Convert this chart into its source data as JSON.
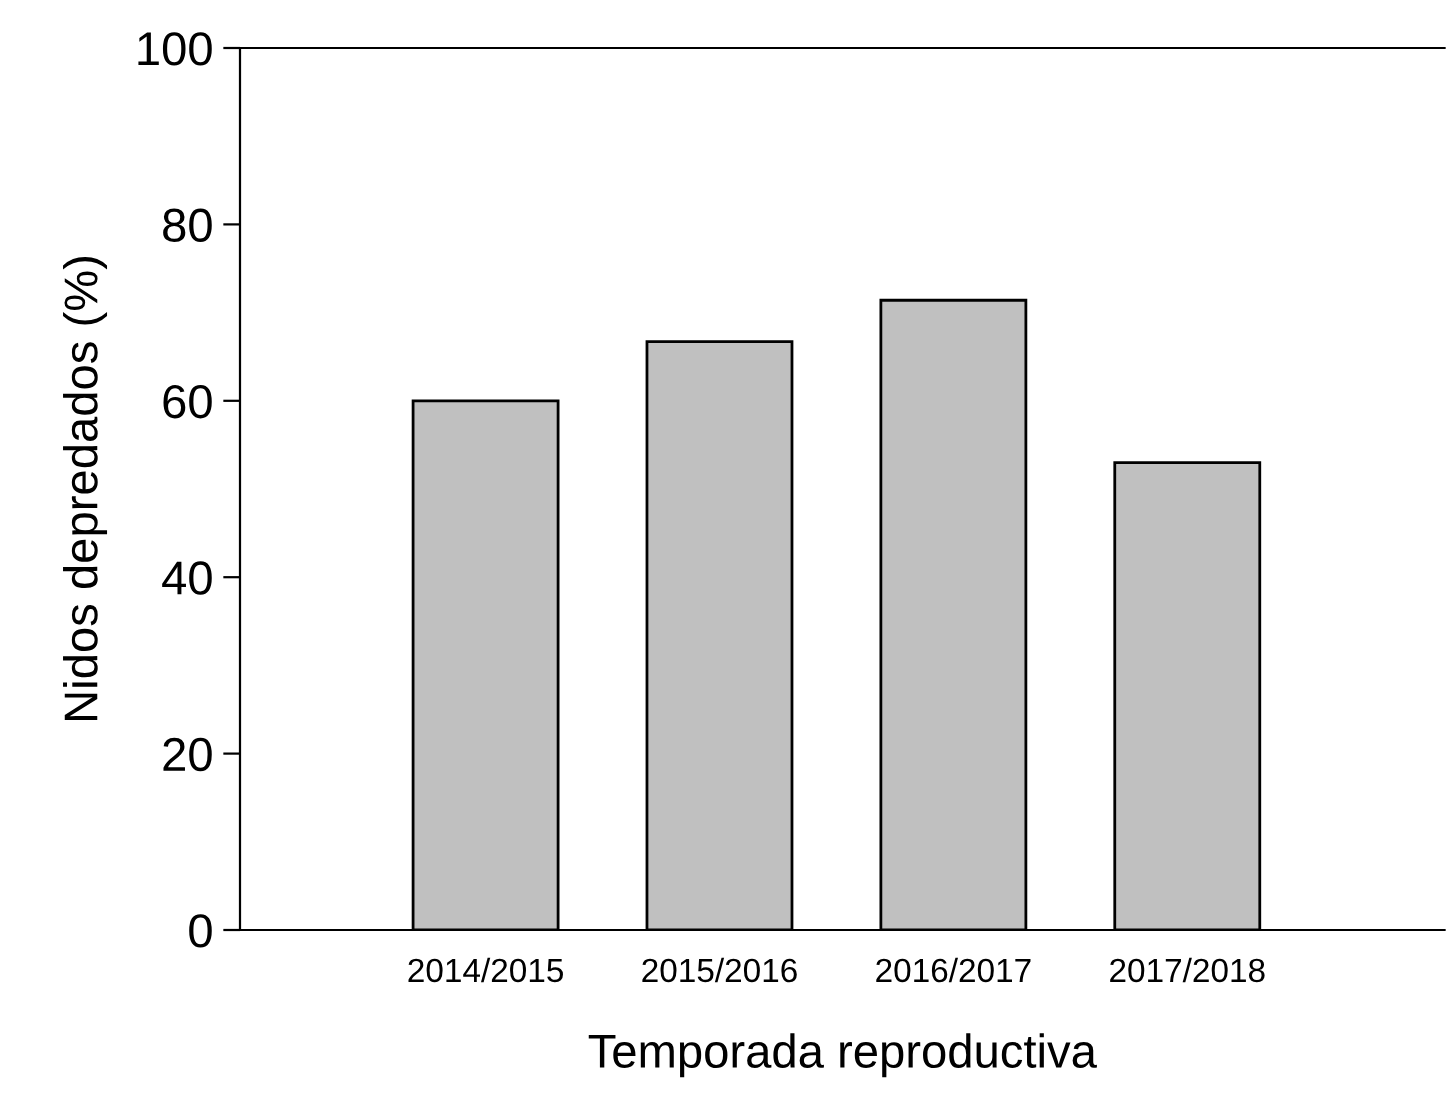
{
  "chart_data": {
    "type": "bar",
    "xlabel": "Temporada reproductiva",
    "ylabel": "Nidos depredados (%)",
    "categories": [
      "2014/2015",
      "2015/2016",
      "2016/2017",
      "2017/2018"
    ],
    "values": [
      60,
      66.7,
      71.4,
      53
    ],
    "color": "#c0c0c0",
    "ylim": [
      0,
      100
    ],
    "yticks": [
      0,
      20,
      40,
      60,
      80,
      100
    ],
    "grid": false,
    "legend": false
  }
}
